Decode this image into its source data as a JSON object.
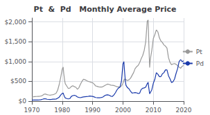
{
  "chart_data": {
    "type": "line",
    "title": "Pt  &  Pd   Monthly Average Price",
    "xlim": [
      1970,
      2020
    ],
    "xticks": [
      1970,
      1980,
      1990,
      2000,
      2010,
      2020
    ],
    "ylim": [
      0,
      2100
    ],
    "yticks": [
      {
        "value": 0,
        "label": "$0"
      },
      {
        "value": 500,
        "label": "$500"
      },
      {
        "value": 1000,
        "label": "$1,000"
      },
      {
        "value": 1500,
        "label": "$1,500"
      },
      {
        "value": 2000,
        "label": "$2,000"
      }
    ],
    "grid": true,
    "legend": "right",
    "series": [
      {
        "name": "Pt",
        "color": "#999999",
        "x": [
          1970.0,
          1970.5,
          1971.0,
          1971.5,
          1972.0,
          1972.5,
          1973.0,
          1973.5,
          1974.0,
          1974.5,
          1975.0,
          1975.5,
          1976.0,
          1976.5,
          1977.0,
          1977.5,
          1978.0,
          1978.5,
          1979.0,
          1979.5,
          1980.0,
          1980.3,
          1980.5,
          1980.8,
          1981.0,
          1981.5,
          1982.0,
          1982.5,
          1983.0,
          1983.5,
          1984.0,
          1984.5,
          1985.0,
          1985.5,
          1986.0,
          1986.5,
          1987.0,
          1987.5,
          1988.0,
          1988.5,
          1989.0,
          1989.5,
          1990.0,
          1990.5,
          1991.0,
          1991.5,
          1992.0,
          1992.5,
          1993.0,
          1993.5,
          1994.0,
          1994.5,
          1995.0,
          1995.5,
          1996.0,
          1996.5,
          1997.0,
          1997.5,
          1998.0,
          1998.5,
          1999.0,
          1999.5,
          2000.0,
          2000.5,
          2001.0,
          2001.5,
          2002.0,
          2002.5,
          2003.0,
          2003.5,
          2004.0,
          2004.5,
          2005.0,
          2005.5,
          2006.0,
          2006.5,
          2007.0,
          2007.5,
          2008.0,
          2008.3,
          2008.5,
          2008.8,
          2009.0,
          2009.5,
          2010.0,
          2010.5,
          2011.0,
          2011.5,
          2012.0,
          2012.5,
          2013.0,
          2013.5,
          2014.0,
          2014.5,
          2015.0,
          2015.5,
          2016.0,
          2016.5,
          2017.0,
          2017.5,
          2018.0,
          2018.5,
          2019.0,
          2019.5,
          2020.0
        ],
        "values": [
          100,
          110,
          115,
          118,
          120,
          122,
          130,
          145,
          175,
          180,
          165,
          158,
          152,
          158,
          162,
          180,
          200,
          280,
          420,
          600,
          810,
          860,
          700,
          520,
          440,
          380,
          320,
          330,
          370,
          390,
          365,
          350,
          300,
          340,
          430,
          500,
          555,
          540,
          520,
          500,
          490,
          475,
          465,
          430,
          385,
          375,
          360,
          355,
          355,
          370,
          395,
          415,
          430,
          420,
          405,
          400,
          395,
          380,
          365,
          360,
          365,
          380,
          450,
          560,
          540,
          520,
          540,
          580,
          650,
          720,
          820,
          870,
          900,
          970,
          1070,
          1150,
          1280,
          1500,
          2020,
          2050,
          1500,
          850,
          1050,
          1280,
          1580,
          1680,
          1800,
          1750,
          1600,
          1520,
          1480,
          1420,
          1390,
          1340,
          1100,
          980,
          920,
          940,
          950,
          930,
          900,
          860,
          830,
          880,
          900
        ]
      },
      {
        "name": "Pd",
        "color": "#1a3aab",
        "x": [
          1970.0,
          1970.5,
          1971.0,
          1971.5,
          1972.0,
          1972.5,
          1973.0,
          1973.5,
          1974.0,
          1974.5,
          1975.0,
          1975.5,
          1976.0,
          1976.5,
          1977.0,
          1977.5,
          1978.0,
          1978.5,
          1979.0,
          1979.5,
          1980.0,
          1980.3,
          1980.5,
          1980.8,
          1981.0,
          1981.5,
          1982.0,
          1982.5,
          1983.0,
          1983.5,
          1984.0,
          1984.5,
          1985.0,
          1985.5,
          1986.0,
          1986.5,
          1987.0,
          1987.5,
          1988.0,
          1988.5,
          1989.0,
          1989.5,
          1990.0,
          1990.5,
          1991.0,
          1991.5,
          1992.0,
          1992.5,
          1993.0,
          1993.5,
          1994.0,
          1994.5,
          1995.0,
          1995.5,
          1996.0,
          1996.5,
          1997.0,
          1997.5,
          1998.0,
          1998.5,
          1999.0,
          1999.5,
          2000.0,
          2000.3,
          2000.5,
          2000.8,
          2001.0,
          2001.5,
          2002.0,
          2002.5,
          2003.0,
          2003.5,
          2004.0,
          2004.5,
          2005.0,
          2005.5,
          2006.0,
          2006.5,
          2007.0,
          2007.5,
          2008.0,
          2008.3,
          2008.5,
          2008.8,
          2009.0,
          2009.5,
          2010.0,
          2010.5,
          2011.0,
          2011.5,
          2012.0,
          2012.5,
          2013.0,
          2013.5,
          2014.0,
          2014.5,
          2015.0,
          2015.5,
          2016.0,
          2016.5,
          2017.0,
          2017.5,
          2018.0,
          2018.5,
          2019.0,
          2019.5,
          2020.0
        ],
        "values": [
          25,
          27,
          28,
          28,
          30,
          32,
          38,
          48,
          60,
          58,
          48,
          44,
          43,
          46,
          50,
          52,
          55,
          75,
          100,
          155,
          195,
          205,
          160,
          105,
          80,
          65,
          57,
          65,
          120,
          140,
          148,
          135,
          105,
          95,
          88,
          98,
          107,
          112,
          115,
          118,
          130,
          125,
          120,
          108,
          92,
          87,
          84,
          87,
          93,
          110,
          140,
          155,
          160,
          148,
          125,
          118,
          155,
          210,
          280,
          330,
          350,
          500,
          940,
          1000,
          780,
          500,
          400,
          340,
          310,
          250,
          205,
          210,
          215,
          210,
          195,
          200,
          295,
          325,
          335,
          355,
          440,
          475,
          340,
          185,
          215,
          285,
          450,
          550,
          720,
          680,
          620,
          620,
          690,
          720,
          790,
          790,
          640,
          565,
          470,
          490,
          560,
          700,
          820,
          1000,
          1050,
          1000,
          1020
        ]
      }
    ]
  }
}
